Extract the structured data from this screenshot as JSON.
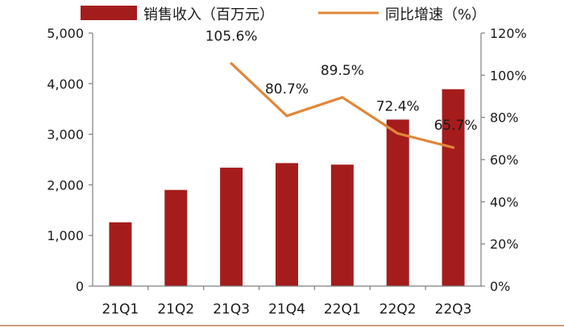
{
  "chart_data": {
    "type": "bar",
    "categories": [
      "21Q1",
      "21Q2",
      "21Q3",
      "21Q4",
      "22Q1",
      "22Q2",
      "22Q3"
    ],
    "series": [
      {
        "name": "销售收入（百万元）",
        "type": "bar",
        "axis": "left",
        "values": [
          1260,
          1900,
          2340,
          2430,
          2400,
          3290,
          3890
        ]
      },
      {
        "name": "同比增速（%）",
        "type": "line",
        "axis": "right",
        "values": [
          null,
          null,
          105.6,
          80.7,
          89.5,
          72.4,
          65.7
        ],
        "data_labels": [
          "",
          "",
          "105.6%",
          "80.7%",
          "89.5%",
          "72.4%",
          "65.7%"
        ]
      }
    ],
    "ylim_left": [
      0,
      5000
    ],
    "yticks_left": [
      "0",
      "1,000",
      "2,000",
      "3,000",
      "4,000",
      "5,000"
    ],
    "ylim_right": [
      0,
      120
    ],
    "yticks_right": [
      "0%",
      "20%",
      "40%",
      "60%",
      "80%",
      "100%",
      "120%"
    ],
    "legend_position": "top",
    "grid": false,
    "colors": {
      "bar": "#a51c1c",
      "line": "#e0873a",
      "axis": "#7f7f7f",
      "base_line": "#c9a080"
    }
  }
}
